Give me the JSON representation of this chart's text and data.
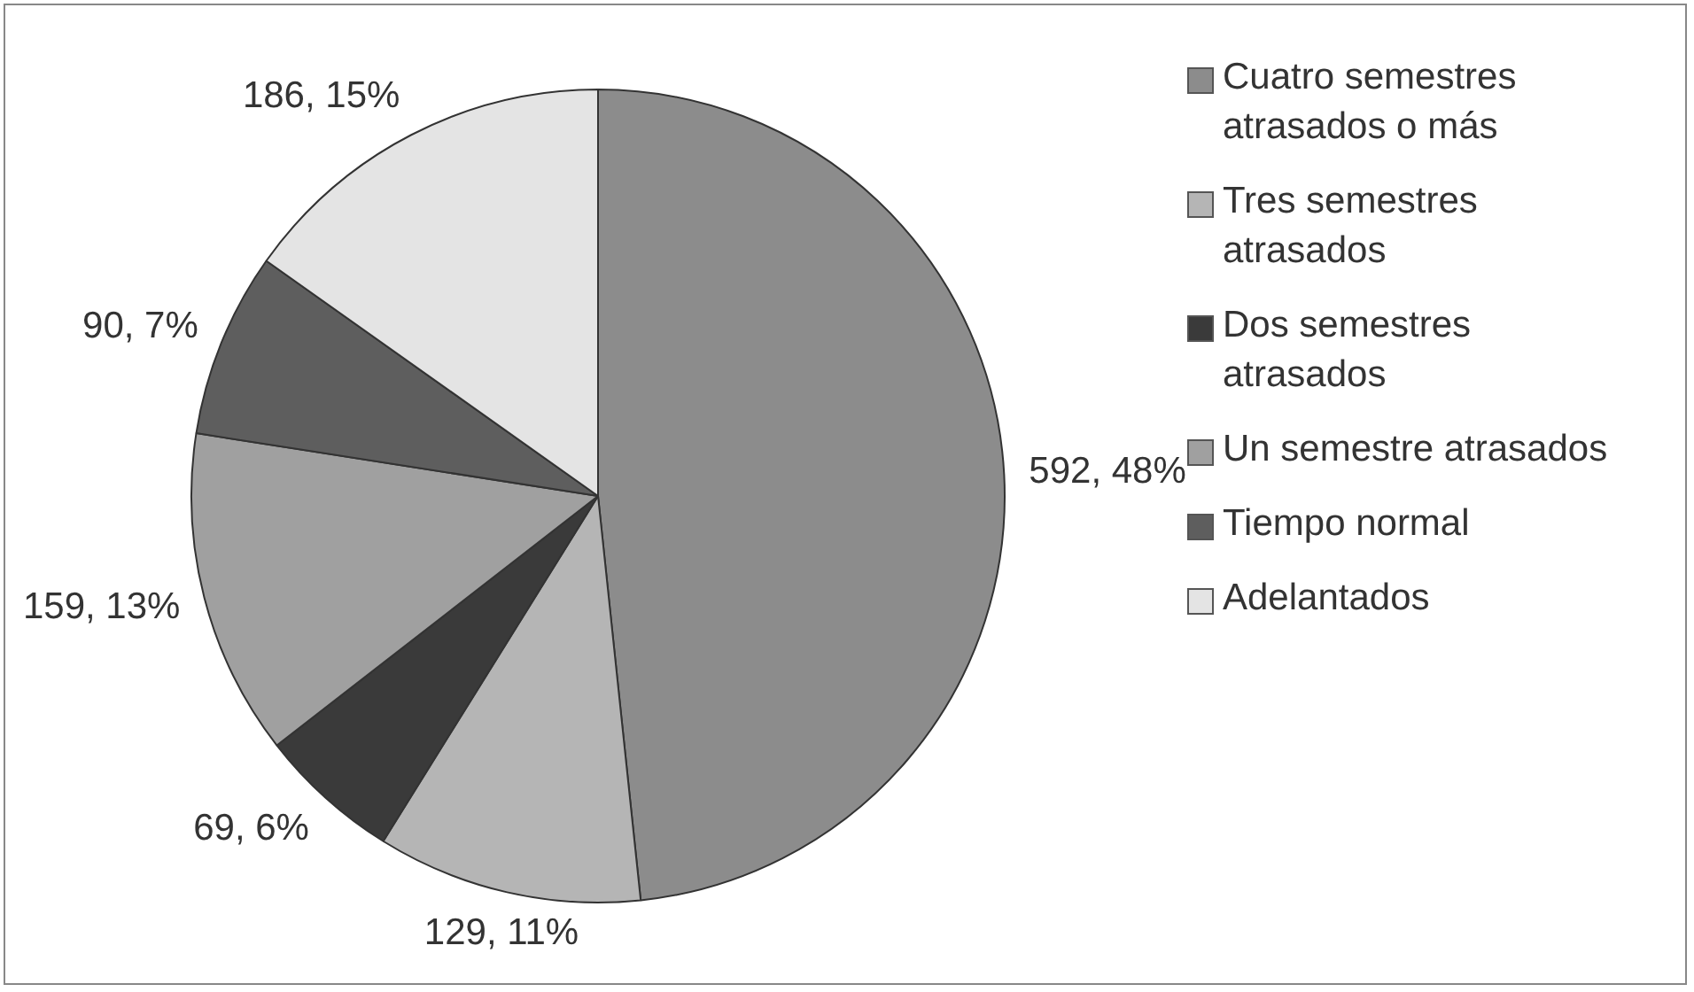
{
  "chart_data": {
    "type": "pie",
    "categories": [
      "Cuatro semestres atrasados o más",
      "Tres semestres atrasados",
      "Dos semestres atrasados",
      "Un semestre atrasados",
      "Tiempo normal",
      "Adelantados"
    ],
    "values": [
      592,
      129,
      69,
      159,
      90,
      186
    ],
    "value_labels": [
      "592, 48%",
      "129, 11%",
      "69, 6%",
      "159, 13%",
      "90, 7%",
      "186, 15%"
    ],
    "colors": [
      "#8c8c8c",
      "#b5b5b5",
      "#3a3a3a",
      "#a0a0a0",
      "#5e5e5e",
      "#e4e4e4"
    ],
    "legend": "right"
  }
}
